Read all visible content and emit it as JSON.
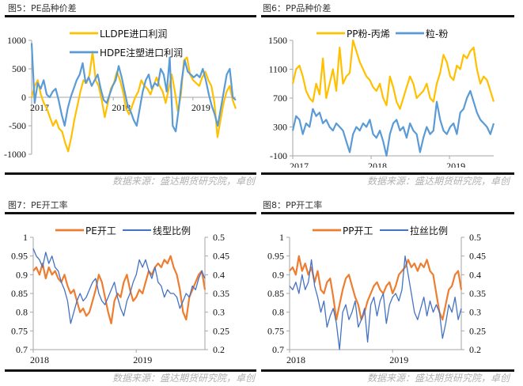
{
  "panels": [
    {
      "title": "图5：PE品种价差",
      "source": "数据来源：盛达期货研究院，卓创"
    },
    {
      "title": "图6：PP品种价差",
      "source": "数据来源：盛达期货研究院，卓创"
    },
    {
      "title": "图7：PE开工率",
      "source": "数据来源：盛达期货研究院，卓创"
    },
    {
      "title": "图8：PP开工率",
      "source": "数据来源：盛达期货研究院，卓创"
    }
  ],
  "colors": {
    "yellow": "#FFC000",
    "lightblue": "#5B9BD5",
    "orange": "#ED7D31",
    "blue": "#4472C4"
  },
  "chart_data": [
    {
      "type": "line",
      "title": "图5：PE品种价差",
      "ylim": [
        -1000,
        1000
      ],
      "yticks": [
        "1000",
        "500",
        "0",
        "-500",
        "-1000"
      ],
      "xticks": [
        "2017",
        "2018",
        "2019"
      ],
      "series": [
        {
          "name": "LLDPE进口利润",
          "color": "#FFC000",
          "values": [
            0,
            200,
            300,
            50,
            -100,
            -200,
            -350,
            -500,
            -400,
            -550,
            -600,
            -800,
            -950,
            -700,
            -400,
            -150,
            100,
            300,
            250,
            400,
            800,
            300,
            200,
            -50,
            -350,
            -100,
            150,
            250,
            450,
            300,
            100,
            -200,
            -300,
            -150,
            0,
            100,
            300,
            200,
            150,
            50,
            200,
            350,
            200,
            100,
            -100,
            150,
            400,
            100,
            -250,
            50,
            650,
            700,
            400,
            300,
            250,
            200,
            350,
            450,
            300,
            200,
            -100,
            -700,
            -400,
            -100,
            100,
            200,
            -50,
            -200
          ]
        },
        {
          "name": "HDPE注塑进口利润",
          "color": "#5B9BD5",
          "values": [
            950,
            -100,
            250,
            150,
            300,
            50,
            0,
            100,
            150,
            -50,
            -300,
            -500,
            -200,
            0,
            150,
            300,
            400,
            600,
            250,
            350,
            200,
            300,
            400,
            150,
            -50,
            -100,
            50,
            200,
            300,
            550,
            350,
            100,
            -150,
            -250,
            -400,
            -500,
            -200,
            100,
            300,
            400,
            150,
            250,
            200,
            500,
            400,
            100,
            700,
            -500,
            -600,
            -200,
            300,
            650,
            450,
            400,
            350,
            400,
            350,
            500,
            300,
            50,
            -150,
            -300,
            -500,
            -200,
            100,
            400,
            500,
            0,
            -50
          ]
        }
      ]
    },
    {
      "type": "line",
      "title": "图6：PP品种价差",
      "ylim": [
        -100,
        1500
      ],
      "yticks": [
        "1500",
        "1100",
        "700",
        "300",
        "-100"
      ],
      "xticks": [
        "2017",
        "2018",
        "2019"
      ],
      "series": [
        {
          "name": "PP粉-丙烯",
          "color": "#FFC000",
          "values": [
            900,
            1100,
            1150,
            1000,
            800,
            700,
            650,
            900,
            750,
            1250,
            700,
            900,
            1100,
            800,
            1400,
            900,
            1000,
            1050,
            1500,
            1350,
            1200,
            1100,
            1000,
            950,
            850,
            800,
            900,
            700,
            600,
            1000,
            850,
            650,
            550,
            700,
            850,
            1000,
            900,
            700,
            750,
            800,
            900,
            700,
            650,
            900,
            1050,
            1300,
            1200,
            1000,
            950,
            1150,
            1100,
            1300,
            1250,
            1350,
            1400,
            1100,
            900,
            1000,
            950,
            800,
            650
          ]
        },
        {
          "name": "粒-粉",
          "color": "#5B9BD5",
          "values": [
            250,
            450,
            400,
            200,
            350,
            300,
            550,
            450,
            500,
            350,
            400,
            300,
            250,
            350,
            300,
            250,
            100,
            -50,
            200,
            300,
            250,
            350,
            300,
            400,
            200,
            150,
            250,
            100,
            -100,
            200,
            350,
            400,
            250,
            300,
            150,
            350,
            250,
            200,
            -50,
            150,
            300,
            200,
            250,
            650,
            400,
            250,
            200,
            300,
            350,
            200,
            500,
            550,
            700,
            800,
            650,
            500,
            400,
            350,
            300,
            200,
            350
          ]
        }
      ]
    },
    {
      "type": "line",
      "title": "图7：PE开工率",
      "ylim": [
        0.7,
        1
      ],
      "y2lim": [
        0.2,
        0.5
      ],
      "yticks": [
        "1",
        "0.95",
        "0.9",
        "0.85",
        "0.8",
        "0.75",
        "0.7"
      ],
      "y2ticks": [
        "0.5",
        "0.45",
        "0.4",
        "0.35",
        "0.3",
        "0.25",
        "0.2"
      ],
      "xticks": [
        "2018",
        "2019"
      ],
      "series": [
        {
          "name": "PE开工",
          "color": "#ED7D31",
          "axis": "left",
          "values": [
            0.91,
            0.92,
            0.9,
            0.93,
            0.89,
            0.92,
            0.9,
            0.91,
            0.89,
            0.88,
            0.9,
            0.87,
            0.85,
            0.86,
            0.83,
            0.8,
            0.81,
            0.79,
            0.8,
            0.83,
            0.86,
            0.9,
            0.88,
            0.84,
            0.8,
            0.77,
            0.83,
            0.85,
            0.84,
            0.88,
            0.9,
            0.86,
            0.83,
            0.84,
            0.86,
            0.85,
            0.88,
            0.91,
            0.9,
            0.92,
            0.93,
            0.92,
            0.94,
            0.93,
            0.95,
            0.92,
            0.9,
            0.86,
            0.8,
            0.78,
            0.84,
            0.86,
            0.88,
            0.9,
            0.91,
            0.86
          ]
        },
        {
          "name": "线型比例",
          "color": "#4472C4",
          "axis": "right",
          "values": [
            0.47,
            0.45,
            0.44,
            0.42,
            0.46,
            0.43,
            0.45,
            0.42,
            0.41,
            0.38,
            0.36,
            0.33,
            0.27,
            0.3,
            0.33,
            0.35,
            0.33,
            0.34,
            0.36,
            0.38,
            0.39,
            0.35,
            0.33,
            0.32,
            0.34,
            0.36,
            0.38,
            0.34,
            0.31,
            0.29,
            0.33,
            0.35,
            0.38,
            0.4,
            0.44,
            0.42,
            0.44,
            0.41,
            0.39,
            0.42,
            0.38,
            0.37,
            0.34,
            0.36,
            0.35,
            0.35,
            0.34,
            0.31,
            0.33,
            0.35,
            0.34,
            0.37,
            0.36,
            0.39,
            0.41,
            0.39
          ]
        }
      ]
    },
    {
      "type": "line",
      "title": "图8：PP开工率",
      "ylim": [
        0.7,
        1
      ],
      "y2lim": [
        0.2,
        0.5
      ],
      "yticks": [
        "1",
        "0.95",
        "0.9",
        "0.85",
        "0.8",
        "0.75",
        "0.7"
      ],
      "y2ticks": [
        "0.5",
        "0.45",
        "0.4",
        "0.35",
        "0.3",
        "0.25",
        "0.2"
      ],
      "xticks": [
        "2018",
        "2019"
      ],
      "series": [
        {
          "name": "PP开工",
          "color": "#ED7D31",
          "axis": "left",
          "values": [
            0.91,
            0.92,
            0.9,
            0.95,
            0.91,
            0.93,
            0.9,
            0.92,
            0.88,
            0.91,
            0.86,
            0.85,
            0.88,
            0.89,
            0.84,
            0.78,
            0.82,
            0.86,
            0.89,
            0.9,
            0.87,
            0.84,
            0.82,
            0.78,
            0.8,
            0.83,
            0.85,
            0.87,
            0.88,
            0.86,
            0.85,
            0.87,
            0.88,
            0.85,
            0.87,
            0.9,
            0.91,
            0.92,
            0.94,
            0.92,
            0.93,
            0.91,
            0.93,
            0.92,
            0.94,
            0.91,
            0.9,
            0.85,
            0.8,
            0.78,
            0.82,
            0.86,
            0.87,
            0.9,
            0.91,
            0.86
          ]
        },
        {
          "name": "拉丝比例",
          "color": "#4472C4",
          "axis": "right",
          "values": [
            0.37,
            0.36,
            0.38,
            0.35,
            0.4,
            0.36,
            0.38,
            0.44,
            0.37,
            0.34,
            0.3,
            0.33,
            0.26,
            0.29,
            0.31,
            0.27,
            0.2,
            0.3,
            0.32,
            0.28,
            0.3,
            0.33,
            0.26,
            0.28,
            0.31,
            0.22,
            0.32,
            0.34,
            0.29,
            0.33,
            0.35,
            0.27,
            0.32,
            0.34,
            0.35,
            0.33,
            0.36,
            0.45,
            0.4,
            0.35,
            0.3,
            0.28,
            0.31,
            0.34,
            0.29,
            0.33,
            0.3,
            0.32,
            0.3,
            0.23,
            0.27,
            0.32,
            0.3,
            0.34,
            0.28,
            0.31
          ]
        }
      ]
    }
  ]
}
